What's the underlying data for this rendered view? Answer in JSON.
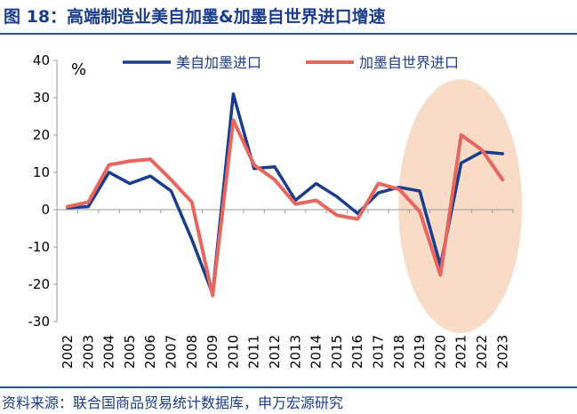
{
  "title": "图 18：高端制造业美自加墨&加墨自世界进口增速",
  "source": "资料来源：联合国商品贸易统计数据库，申万宏源研究",
  "chart_data": {
    "type": "line",
    "ylabel": "%",
    "ylim": [
      -30,
      40
    ],
    "yticks": [
      40,
      30,
      20,
      10,
      0,
      -10,
      -20,
      -30
    ],
    "categories": [
      "2002",
      "2003",
      "2004",
      "2005",
      "2006",
      "2007",
      "2008",
      "2009",
      "2010",
      "2011",
      "2012",
      "2013",
      "2014",
      "2015",
      "2016",
      "2017",
      "2018",
      "2019",
      "2020",
      "2021",
      "2022",
      "2023"
    ],
    "series": [
      {
        "name": "美自加墨进口",
        "color": "#1a3c8c",
        "values": [
          0.5,
          0.8,
          10,
          7,
          9,
          5,
          -8,
          -22.5,
          31,
          11,
          11.5,
          2.5,
          7,
          3.5,
          -1,
          4.5,
          6,
          5,
          -15,
          12.5,
          15.5,
          15
        ]
      },
      {
        "name": "加墨自世界进口",
        "color": "#e8665e",
        "values": [
          0.8,
          2,
          12,
          13,
          13.5,
          8,
          2,
          -23,
          24,
          12,
          8,
          1.5,
          2.5,
          -1.5,
          -2.5,
          7,
          5.5,
          -0.5,
          -17.5,
          20,
          16,
          8
        ]
      }
    ],
    "legend_position": "top",
    "highlight_years": [
      "2019",
      "2023"
    ],
    "highlight_color": "#f8dcc8"
  }
}
